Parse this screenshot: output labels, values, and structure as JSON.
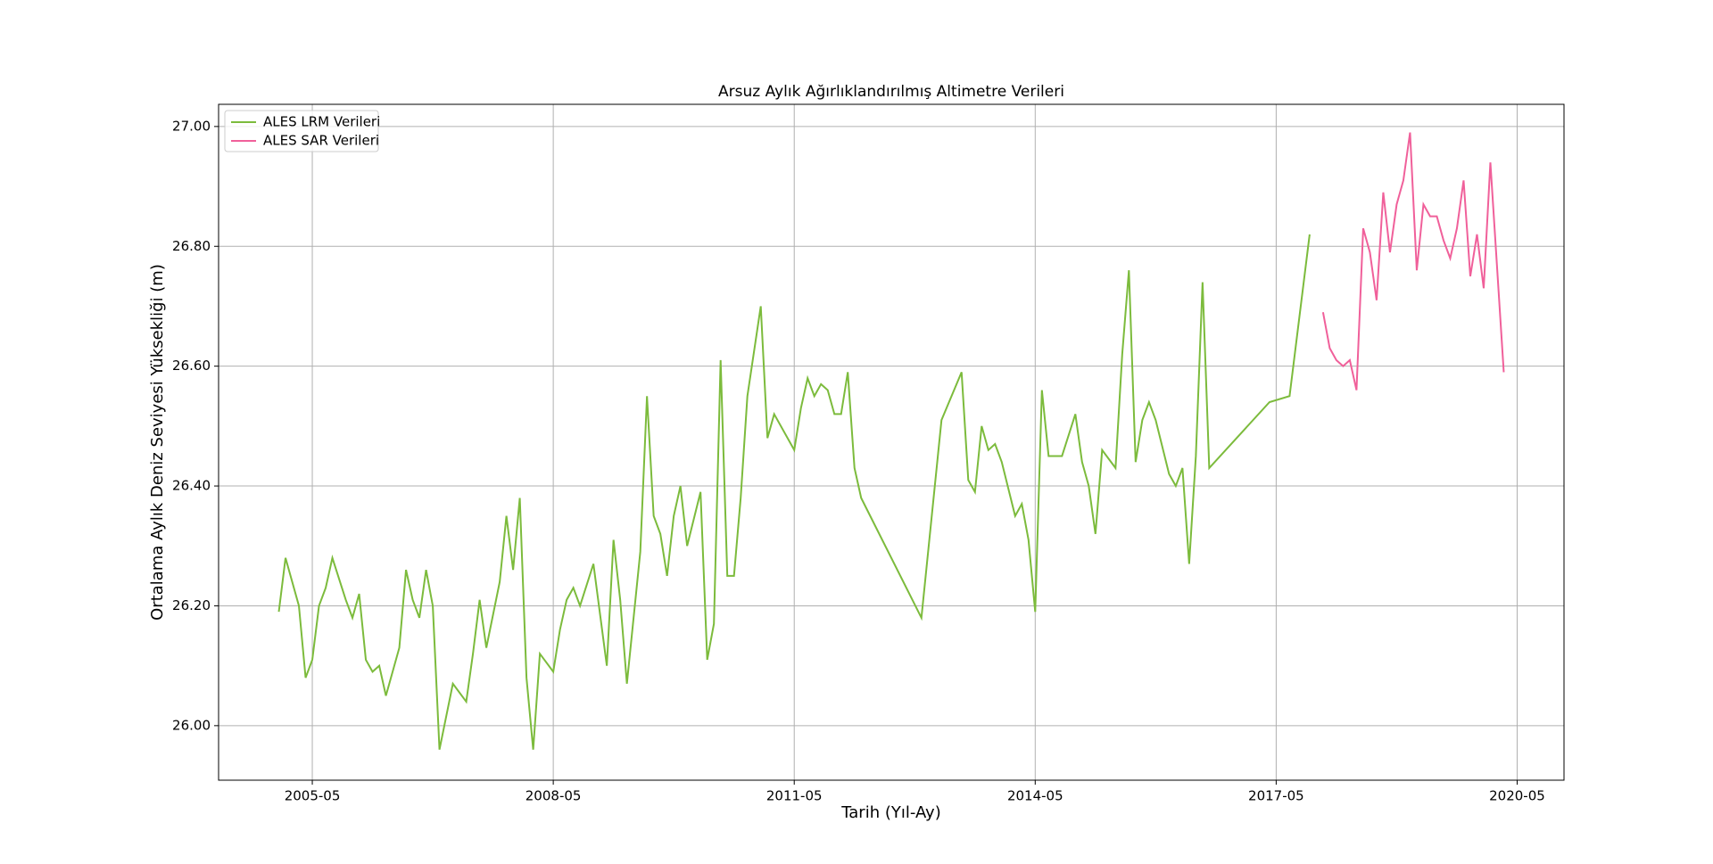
{
  "chart_data": {
    "type": "line",
    "title": "Arsuz Aylık Ağırlıklandırılmış Altimetre Verileri",
    "xlabel": "Tarih (Yıl-Ay)",
    "ylabel": "Ortalama Aylık Deniz Seviyesi Yüksekliği (m)",
    "xlim": [
      "2004-03",
      "2020-12"
    ],
    "xticks": [
      "2005-05",
      "2008-05",
      "2011-05",
      "2014-05",
      "2017-05",
      "2020-05"
    ],
    "ylim": [
      25.909,
      27.037
    ],
    "yticks": [
      {
        "value": 26,
        "label": "26.00"
      },
      {
        "value": 26.2,
        "label": "26.20"
      },
      {
        "value": 26.4,
        "label": "26.40"
      },
      {
        "value": 26.6,
        "label": "26.60"
      },
      {
        "value": 26.8,
        "label": "26.80"
      },
      {
        "value": 27,
        "label": "27.00"
      }
    ],
    "grid": true,
    "legend": "upper left",
    "series": [
      {
        "name": "ALES LRM Verileri",
        "color": "#7cbb3c",
        "x": [
          "2004-12",
          "2005-01",
          "2005-03",
          "2005-04",
          "2005-05",
          "2005-06",
          "2005-07",
          "2005-08",
          "2005-10",
          "2005-11",
          "2005-12",
          "2006-01",
          "2006-02",
          "2006-03",
          "2006-04",
          "2006-06",
          "2006-07",
          "2006-08",
          "2006-09",
          "2006-10",
          "2006-11",
          "2006-12",
          "2007-02",
          "2007-04",
          "2007-05",
          "2007-06",
          "2007-07",
          "2007-09",
          "2007-10",
          "2007-11",
          "2007-12",
          "2008-01",
          "2008-02",
          "2008-03",
          "2008-05",
          "2008-06",
          "2008-07",
          "2008-08",
          "2008-09",
          "2008-11",
          "2009-01",
          "2009-02",
          "2009-03",
          "2009-04",
          "2009-06",
          "2009-07",
          "2009-08",
          "2009-09",
          "2009-10",
          "2009-11",
          "2009-12",
          "2010-01",
          "2010-03",
          "2010-04",
          "2010-05",
          "2010-06",
          "2010-07",
          "2010-08",
          "2010-09",
          "2010-10",
          "2010-12",
          "2011-01",
          "2011-02",
          "2011-05",
          "2011-06",
          "2011-07",
          "2011-08",
          "2011-09",
          "2011-10",
          "2011-11",
          "2011-12",
          "2012-01",
          "2012-02",
          "2012-03",
          "2012-12",
          "2013-03",
          "2013-06",
          "2013-07",
          "2013-08",
          "2013-09",
          "2013-10",
          "2013-11",
          "2013-12",
          "2014-02",
          "2014-03",
          "2014-04",
          "2014-05",
          "2014-06",
          "2014-07",
          "2014-09",
          "2014-11",
          "2014-12",
          "2015-01",
          "2015-02",
          "2015-03",
          "2015-05",
          "2015-06",
          "2015-07",
          "2015-08",
          "2015-09",
          "2015-10",
          "2015-11",
          "2016-01",
          "2016-02",
          "2016-03",
          "2016-04",
          "2016-05",
          "2016-06",
          "2016-07",
          "2017-04",
          "2017-07",
          "2017-10"
        ],
        "values": [
          26.19,
          26.28,
          26.2,
          26.08,
          26.11,
          26.2,
          26.23,
          26.28,
          26.21,
          26.18,
          26.22,
          26.11,
          26.09,
          26.1,
          26.05,
          26.13,
          26.26,
          26.21,
          26.18,
          26.26,
          26.2,
          25.96,
          26.07,
          26.04,
          26.12,
          26.21,
          26.13,
          26.24,
          26.35,
          26.26,
          26.38,
          26.08,
          25.96,
          26.12,
          26.09,
          26.16,
          26.21,
          26.23,
          26.2,
          26.27,
          26.1,
          26.31,
          26.21,
          26.07,
          26.29,
          26.55,
          26.35,
          26.32,
          26.25,
          26.35,
          26.4,
          26.3,
          26.39,
          26.11,
          26.17,
          26.61,
          26.25,
          26.25,
          26.38,
          26.55,
          26.7,
          26.48,
          26.52,
          26.46,
          26.53,
          26.58,
          26.55,
          26.57,
          26.56,
          26.52,
          26.52,
          26.59,
          26.43,
          26.38,
          26.18,
          26.51,
          26.59,
          26.41,
          26.39,
          26.5,
          26.46,
          26.47,
          26.44,
          26.35,
          26.37,
          26.31,
          26.19,
          26.56,
          26.45,
          26.45,
          26.52,
          26.44,
          26.4,
          26.32,
          26.46,
          26.43,
          26.62,
          26.76,
          26.44,
          26.51,
          26.54,
          26.51,
          26.42,
          26.4,
          26.43,
          26.27,
          26.45,
          26.74,
          26.43,
          26.54,
          26.55,
          26.82
        ]
      },
      {
        "name": "ALES SAR Verileri",
        "color": "#f0609a",
        "x": [
          "2017-12",
          "2018-01",
          "2018-02",
          "2018-03",
          "2018-04",
          "2018-05",
          "2018-06",
          "2018-07",
          "2018-08",
          "2018-09",
          "2018-10",
          "2018-11",
          "2018-12",
          "2019-01",
          "2019-02",
          "2019-03",
          "2019-04",
          "2019-05",
          "2019-06",
          "2019-07",
          "2019-08",
          "2019-09",
          "2019-10",
          "2019-11",
          "2019-12",
          "2020-01",
          "2020-03"
        ],
        "values": [
          26.69,
          26.63,
          26.61,
          26.6,
          26.61,
          26.56,
          26.83,
          26.79,
          26.71,
          26.89,
          26.79,
          26.87,
          26.91,
          26.99,
          26.76,
          26.87,
          26.85,
          26.85,
          26.81,
          26.78,
          26.83,
          26.91,
          26.75,
          26.82,
          26.73,
          26.94,
          26.59
        ]
      }
    ]
  }
}
